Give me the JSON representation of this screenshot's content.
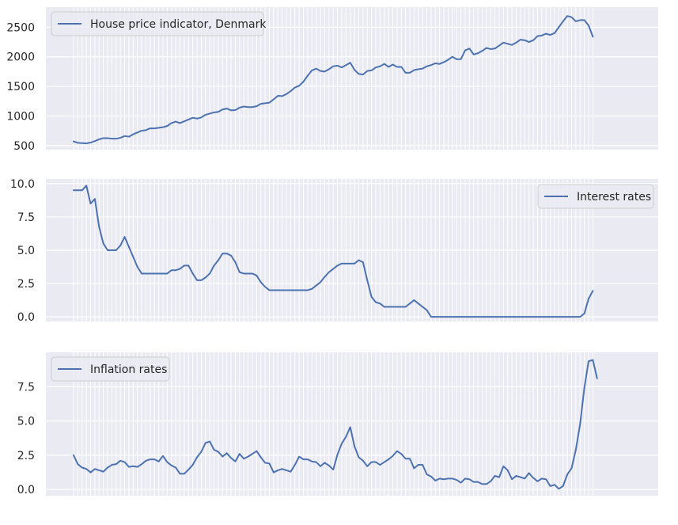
{
  "chart_data": [
    {
      "type": "line",
      "title": "",
      "xlabel": "",
      "ylabel": "",
      "yticks": [
        500,
        1000,
        1500,
        2000,
        2500
      ],
      "ylim": [
        430,
        2840
      ],
      "grid": true,
      "legend_position": "top-left",
      "series": [
        {
          "name": "House price indicator, Denmark",
          "color": "#4c72b0",
          "values": [
            570,
            545,
            540,
            535,
            550,
            575,
            605,
            625,
            625,
            615,
            615,
            630,
            660,
            650,
            690,
            720,
            750,
            760,
            790,
            790,
            800,
            810,
            830,
            880,
            905,
            880,
            910,
            940,
            970,
            955,
            975,
            1020,
            1040,
            1060,
            1070,
            1110,
            1125,
            1095,
            1100,
            1140,
            1160,
            1150,
            1150,
            1165,
            1205,
            1215,
            1225,
            1280,
            1340,
            1335,
            1370,
            1420,
            1480,
            1510,
            1580,
            1680,
            1770,
            1800,
            1760,
            1750,
            1790,
            1840,
            1850,
            1820,
            1860,
            1900,
            1780,
            1710,
            1700,
            1760,
            1770,
            1820,
            1840,
            1880,
            1830,
            1870,
            1830,
            1830,
            1730,
            1730,
            1775,
            1790,
            1800,
            1840,
            1860,
            1890,
            1880,
            1910,
            1950,
            2000,
            1960,
            1960,
            2110,
            2140,
            2040,
            2060,
            2100,
            2150,
            2130,
            2140,
            2190,
            2240,
            2220,
            2200,
            2240,
            2290,
            2280,
            2250,
            2280,
            2350,
            2360,
            2390,
            2370,
            2400,
            2500,
            2600,
            2690,
            2670,
            2600,
            2620,
            2620,
            2530,
            2340
          ]
        }
      ]
    },
    {
      "type": "line",
      "title": "",
      "xlabel": "",
      "ylabel": "",
      "yticks": [
        0.0,
        2.5,
        5.0,
        7.5,
        10.0
      ],
      "ytick_labels": [
        "0.0",
        "2.5",
        "5.0",
        "7.5",
        "10.0"
      ],
      "ylim": [
        -0.35,
        10.35
      ],
      "grid": true,
      "legend_position": "top-right",
      "series": [
        {
          "name": "Interest rates",
          "color": "#4c72b0",
          "values": [
            9.5,
            9.5,
            9.5,
            9.85,
            8.5,
            8.85,
            6.75,
            5.5,
            5.0,
            5.0,
            5.0,
            5.35,
            6.0,
            5.25,
            4.5,
            3.75,
            3.25,
            3.25,
            3.25,
            3.25,
            3.25,
            3.25,
            3.25,
            3.5,
            3.5,
            3.6,
            3.85,
            3.85,
            3.25,
            2.75,
            2.75,
            2.95,
            3.25,
            3.85,
            4.25,
            4.75,
            4.75,
            4.6,
            4.1,
            3.35,
            3.25,
            3.25,
            3.25,
            3.1,
            2.6,
            2.25,
            2.0,
            2.0,
            2.0,
            2.0,
            2.0,
            2.0,
            2.0,
            2.0,
            2.0,
            2.0,
            2.1,
            2.35,
            2.6,
            3.0,
            3.35,
            3.6,
            3.85,
            4.0,
            4.0,
            4.0,
            4.0,
            4.25,
            4.1,
            2.75,
            1.5,
            1.1,
            1.0,
            0.75,
            0.75,
            0.75,
            0.75,
            0.75,
            0.75,
            1.0,
            1.25,
            1.0,
            0.75,
            0.5,
            0.0,
            0.0,
            0.0,
            0.0,
            0.0,
            0.0,
            0.0,
            0.0,
            0.0,
            0.0,
            0.0,
            0.0,
            0.0,
            0.0,
            0.0,
            0.0,
            0.0,
            0.0,
            0.0,
            0.0,
            0.0,
            0.0,
            0.0,
            0.0,
            0.0,
            0.0,
            0.0,
            0.0,
            0.0,
            0.0,
            0.0,
            0.0,
            0.0,
            0.0,
            0.0,
            0.0,
            0.25,
            1.35,
            1.95
          ]
        }
      ]
    },
    {
      "type": "line",
      "title": "",
      "xlabel": "",
      "ylabel": "",
      "yticks": [
        0.0,
        2.5,
        5.0,
        7.5
      ],
      "ytick_labels": [
        "0.0",
        "2.5",
        "5.0",
        "7.5"
      ],
      "ylim": [
        -0.45,
        10.0
      ],
      "grid": true,
      "legend_position": "top-left",
      "series": [
        {
          "name": "Inflation rates",
          "color": "#4c72b0",
          "values": [
            2.5,
            1.85,
            1.6,
            1.5,
            1.25,
            1.5,
            1.4,
            1.3,
            1.6,
            1.8,
            1.85,
            2.1,
            2.0,
            1.65,
            1.7,
            1.65,
            1.85,
            2.1,
            2.2,
            2.2,
            2.05,
            2.45,
            2.0,
            1.75,
            1.6,
            1.15,
            1.15,
            1.45,
            1.8,
            2.35,
            2.75,
            3.4,
            3.5,
            2.9,
            2.75,
            2.4,
            2.65,
            2.3,
            2.05,
            2.6,
            2.25,
            2.4,
            2.6,
            2.8,
            2.35,
            1.95,
            1.9,
            1.25,
            1.4,
            1.5,
            1.4,
            1.3,
            1.8,
            2.4,
            2.2,
            2.2,
            2.05,
            2.0,
            1.7,
            1.95,
            1.75,
            1.45,
            2.55,
            3.35,
            3.85,
            4.55,
            3.15,
            2.35,
            2.1,
            1.7,
            2.0,
            2.0,
            1.8,
            2.0,
            2.2,
            2.45,
            2.8,
            2.6,
            2.25,
            2.25,
            1.55,
            1.8,
            1.8,
            1.1,
            0.95,
            0.65,
            0.8,
            0.75,
            0.8,
            0.8,
            0.7,
            0.5,
            0.8,
            0.75,
            0.55,
            0.55,
            0.4,
            0.4,
            0.6,
            1.0,
            0.9,
            1.7,
            1.4,
            0.75,
            1.0,
            0.9,
            0.8,
            1.2,
            0.85,
            0.6,
            0.8,
            0.75,
            0.25,
            0.35,
            0.05,
            0.25,
            1.1,
            1.55,
            2.9,
            4.75,
            7.4,
            9.35,
            9.45,
            8.1
          ]
        }
      ]
    }
  ]
}
